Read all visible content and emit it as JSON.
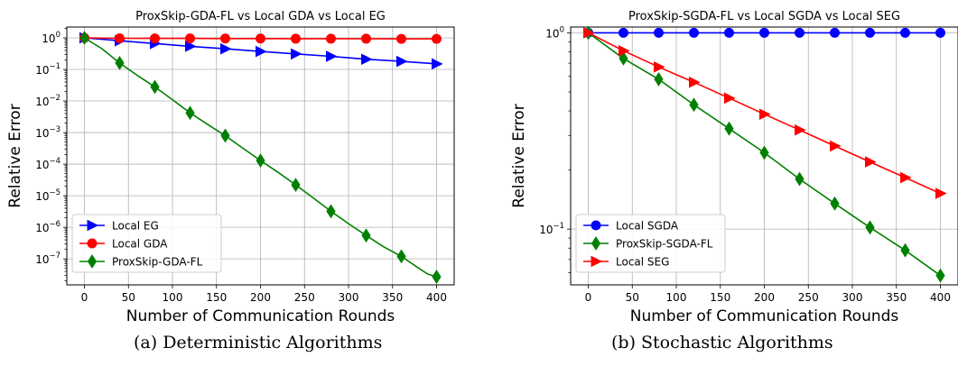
{
  "captions": {
    "a": "(a) Deterministic Algorithms",
    "b": "(b) Stochastic Algorithms"
  },
  "chart_data": [
    {
      "type": "line",
      "title": "ProxSkip-GDA-FL vs Local GDA vs Local EG",
      "xlabel": "Number of Communication Rounds",
      "ylabel": "Relative Error",
      "xlim": [
        -20,
        420
      ],
      "ylim": [
        1.5e-08,
        2.2
      ],
      "yscale": "log",
      "xticks": [
        0,
        50,
        100,
        150,
        200,
        250,
        300,
        350,
        400
      ],
      "yticks": [
        1,
        0.1,
        0.01,
        0.001,
        0.0001,
        1e-05,
        1e-06,
        1e-07
      ],
      "ytick_labels": [
        {
          "base": "10",
          "exp": "0"
        },
        {
          "base": "10",
          "exp": "−1"
        },
        {
          "base": "10",
          "exp": "−2"
        },
        {
          "base": "10",
          "exp": "−3"
        },
        {
          "base": "10",
          "exp": "−4"
        },
        {
          "base": "10",
          "exp": "−5"
        },
        {
          "base": "10",
          "exp": "−6"
        },
        {
          "base": "10",
          "exp": "−7"
        }
      ],
      "grid": true,
      "legend_position": "lower-left",
      "series": [
        {
          "name": "Local EG",
          "color": "#0000ff",
          "marker": "triangle-right",
          "x": [
            0,
            40,
            80,
            120,
            160,
            200,
            240,
            280,
            320,
            360,
            400
          ],
          "y": [
            1.0,
            0.81,
            0.66,
            0.54,
            0.45,
            0.37,
            0.31,
            0.26,
            0.21,
            0.18,
            0.15
          ]
        },
        {
          "name": "Local GDA",
          "color": "#ff0000",
          "marker": "circle",
          "x": [
            0,
            40,
            80,
            120,
            160,
            200,
            240,
            280,
            320,
            360,
            400
          ],
          "y": [
            1.0,
            0.97,
            0.96,
            0.96,
            0.95,
            0.95,
            0.94,
            0.94,
            0.94,
            0.93,
            0.93
          ]
        },
        {
          "name": "ProxSkip-GDA-FL",
          "color": "#008000",
          "marker": "diamond",
          "x": [
            0,
            20,
            40,
            60,
            80,
            100,
            120,
            140,
            160,
            180,
            200,
            220,
            240,
            260,
            280,
            300,
            320,
            340,
            360,
            380,
            390,
            400
          ],
          "y": [
            1.0,
            0.45,
            0.16,
            0.065,
            0.028,
            0.011,
            0.0042,
            0.0018,
            0.0008,
            0.00032,
            0.00013,
            5.5e-05,
            2.2e-05,
            8.5e-06,
            3.2e-06,
            1.3e-06,
            5.5e-07,
            2.4e-07,
            1.2e-07,
            5e-08,
            3.3e-08,
            2.7e-08
          ]
        }
      ]
    },
    {
      "type": "line",
      "title": "ProxSkip-SGDA-FL vs Local SGDA vs Local SEG",
      "xlabel": "Number of Communication Rounds",
      "ylabel": "Relative Error",
      "xlim": [
        -20,
        420
      ],
      "ylim": [
        0.052,
        1.07
      ],
      "yscale": "log",
      "xticks": [
        0,
        50,
        100,
        150,
        200,
        250,
        300,
        350,
        400
      ],
      "yticks": [
        1,
        0.1
      ],
      "ytick_labels": [
        {
          "base": "10",
          "exp": "0"
        },
        {
          "base": "10",
          "exp": "−1"
        }
      ],
      "grid": true,
      "legend_position": "lower-left",
      "series": [
        {
          "name": "Local SGDA",
          "color": "#0000ff",
          "marker": "circle",
          "x": [
            0,
            40,
            80,
            120,
            160,
            200,
            240,
            280,
            320,
            360,
            400
          ],
          "y": [
            1.0,
            1.0,
            1.0,
            1.0,
            1.0,
            1.0,
            1.0,
            1.0,
            1.0,
            1.0,
            1.0
          ]
        },
        {
          "name": "ProxSkip-SGDA-FL",
          "color": "#008000",
          "marker": "diamond",
          "x": [
            0,
            40,
            80,
            120,
            160,
            200,
            240,
            280,
            320,
            360,
            400
          ],
          "y": [
            1.0,
            0.74,
            0.58,
            0.43,
            0.325,
            0.245,
            0.18,
            0.135,
            0.102,
            0.078,
            0.058
          ]
        },
        {
          "name": "Local SEG",
          "color": "#ff0000",
          "marker": "triangle-right",
          "x": [
            0,
            40,
            80,
            120,
            160,
            200,
            240,
            280,
            320,
            360,
            400
          ],
          "y": [
            1.0,
            0.81,
            0.67,
            0.56,
            0.465,
            0.385,
            0.32,
            0.265,
            0.22,
            0.183,
            0.152
          ]
        }
      ]
    }
  ]
}
